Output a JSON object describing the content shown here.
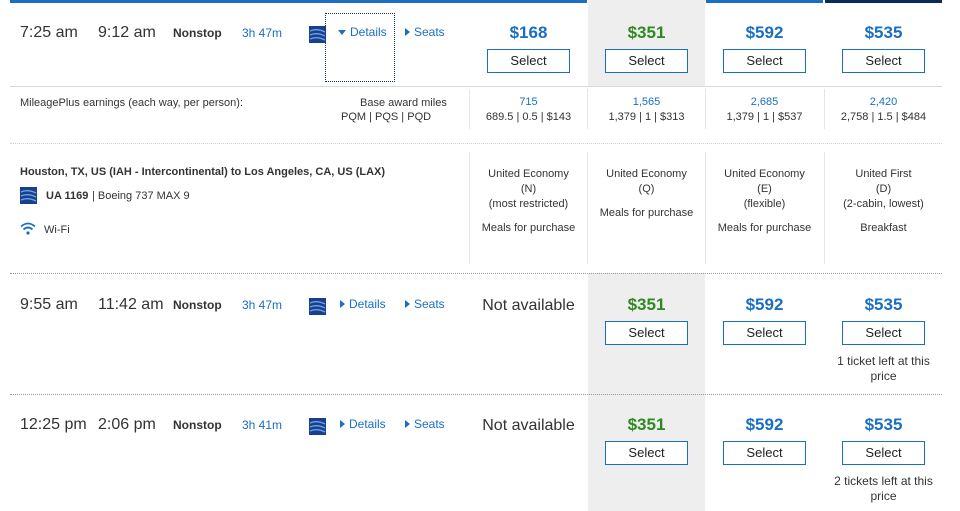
{
  "colors": {
    "accent_blue": "#1a6ec4",
    "price_green": "#2e8a1f",
    "selected_col_bg": "#eeeeee",
    "topbar_dark": "#0a2a5c"
  },
  "flights": [
    {
      "depart": "7:25 am",
      "arrive": "9:12 am",
      "stops": "Nonstop",
      "duration": "3h 47m",
      "details_label": "Details",
      "details_expanded": true,
      "seats_label": "Seats",
      "fares": [
        {
          "available": true,
          "price": "$168",
          "color": "blue",
          "select_label": "Select"
        },
        {
          "available": true,
          "price": "$351",
          "color": "green",
          "select_label": "Select"
        },
        {
          "available": true,
          "price": "$592",
          "color": "blue",
          "select_label": "Select"
        },
        {
          "available": true,
          "price": "$535",
          "color": "blue",
          "select_label": "Select"
        }
      ]
    },
    {
      "depart": "9:55 am",
      "arrive": "11:42 am",
      "stops": "Nonstop",
      "duration": "3h 47m",
      "details_label": "Details",
      "seats_label": "Seats",
      "fares": [
        {
          "available": false,
          "text": "Not available"
        },
        {
          "available": true,
          "price": "$351",
          "color": "green",
          "select_label": "Select"
        },
        {
          "available": true,
          "price": "$592",
          "color": "blue",
          "select_label": "Select"
        },
        {
          "available": true,
          "price": "$535",
          "color": "blue",
          "select_label": "Select",
          "note": "1 ticket left at this price"
        }
      ]
    },
    {
      "depart": "12:25 pm",
      "arrive": "2:06 pm",
      "stops": "Nonstop",
      "duration": "3h 41m",
      "details_label": "Details",
      "seats_label": "Seats",
      "fares": [
        {
          "available": false,
          "text": "Not available"
        },
        {
          "available": true,
          "price": "$351",
          "color": "green",
          "select_label": "Select"
        },
        {
          "available": true,
          "price": "$592",
          "color": "blue",
          "select_label": "Select"
        },
        {
          "available": true,
          "price": "$535",
          "color": "blue",
          "select_label": "Select",
          "note": "2 tickets left at this price"
        }
      ]
    }
  ],
  "details": {
    "earnings_label": "MileagePlus earnings (each way, per person):",
    "base_award_label": "Base award miles",
    "pqm_label": "PQM | PQS | PQD",
    "miles": [
      {
        "miles": "715",
        "sub": "689.5 | 0.5 | $143"
      },
      {
        "miles": "1,565",
        "sub": "1,379 | 1 | $313"
      },
      {
        "miles": "2,685",
        "sub": "1,379 | 1 | $537"
      },
      {
        "miles": "2,420",
        "sub": "2,758 | 1.5 | $484"
      }
    ],
    "route": "Houston, TX, US (IAH - Intercontinental) to Los Angeles, CA, US (LAX)",
    "flight_number": "UA 1169",
    "aircraft": "| Boeing 737 MAX 9",
    "wifi_label": "Wi-Fi",
    "cabins": [
      {
        "line1": "United Economy",
        "line2": "(N)",
        "line3": "(most restricted)",
        "meal": "Meals for purchase"
      },
      {
        "line1": "United Economy",
        "line2": "(Q)",
        "line3": "",
        "meal": "Meals for purchase"
      },
      {
        "line1": "United Economy",
        "line2": "(E)",
        "line3": "(flexible)",
        "meal": "Meals for purchase"
      },
      {
        "line1": "United First",
        "line2": "(D)",
        "line3": "(2-cabin, lowest)",
        "meal": "Breakfast"
      }
    ]
  }
}
